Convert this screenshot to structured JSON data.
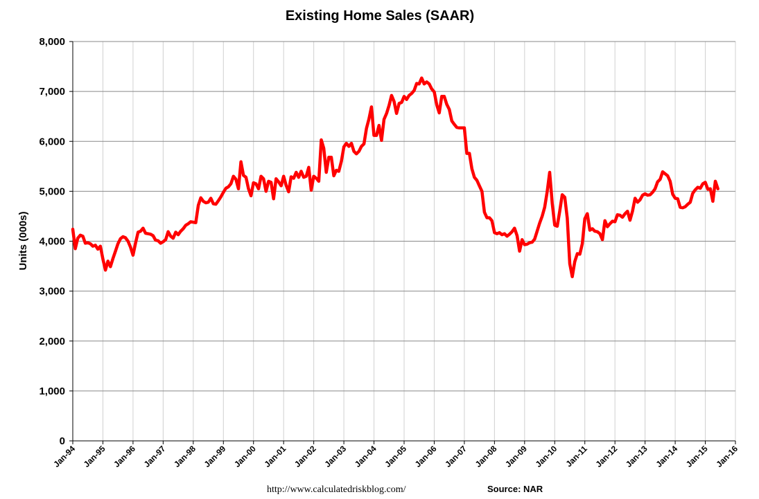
{
  "footer": {
    "url": "http://www.calculatedriskblog.com/",
    "source": "Source: NAR"
  },
  "colors": {
    "series": "#ff0000",
    "grid_h": "#888888",
    "grid_v": "#d0d0d0",
    "axis": "#000000"
  },
  "chart_data": {
    "type": "line",
    "title": "Existing Home Sales (SAAR)",
    "ylabel": "Units (000s)",
    "xlabel": "",
    "ylim": [
      0,
      8000
    ],
    "yticks": [
      0,
      1000,
      2000,
      3000,
      4000,
      5000,
      6000,
      7000,
      8000
    ],
    "ytick_labels": [
      "0",
      "1,000",
      "2,000",
      "3,000",
      "4,000",
      "5,000",
      "6,000",
      "7,000",
      "8,000"
    ],
    "xlim": [
      "1994-01",
      "2016-01"
    ],
    "xtick_labels": [
      "Jan-94",
      "Jan-95",
      "Jan-96",
      "Jan-97",
      "Jan-98",
      "Jan-99",
      "Jan-00",
      "Jan-01",
      "Jan-02",
      "Jan-03",
      "Jan-04",
      "Jan-05",
      "Jan-06",
      "Jan-07",
      "Jan-08",
      "Jan-09",
      "Jan-10",
      "Jan-11",
      "Jan-12",
      "Jan-13",
      "Jan-14",
      "Jan-15",
      "Jan-16"
    ],
    "grid": {
      "horizontal": true,
      "vertical": true
    },
    "legend": "none",
    "series": [
      {
        "color": "#ff0000",
        "x": [
          "1994-01",
          "1994-02",
          "1994-03",
          "1994-04",
          "1994-05",
          "1994-06",
          "1994-07",
          "1994-08",
          "1994-09",
          "1994-10",
          "1994-11",
          "1994-12",
          "1995-01",
          "1995-02",
          "1995-03",
          "1995-04",
          "1995-05",
          "1995-06",
          "1995-07",
          "1995-08",
          "1995-09",
          "1995-10",
          "1995-11",
          "1995-12",
          "1996-01",
          "1996-02",
          "1996-03",
          "1996-04",
          "1996-05",
          "1996-06",
          "1996-07",
          "1996-08",
          "1996-09",
          "1996-10",
          "1996-11",
          "1996-12",
          "1997-01",
          "1997-02",
          "1997-03",
          "1997-04",
          "1997-05",
          "1997-06",
          "1997-07",
          "1997-08",
          "1997-09",
          "1997-10",
          "1997-11",
          "1997-12",
          "1998-01",
          "1998-02",
          "1998-03",
          "1998-04",
          "1998-05",
          "1998-06",
          "1998-07",
          "1998-08",
          "1998-09",
          "1998-10",
          "1998-11",
          "1998-12",
          "1999-01",
          "1999-02",
          "1999-03",
          "1999-04",
          "1999-05",
          "1999-06",
          "1999-07",
          "1999-08",
          "1999-09",
          "1999-10",
          "1999-11",
          "1999-12",
          "2000-01",
          "2000-02",
          "2000-03",
          "2000-04",
          "2000-05",
          "2000-06",
          "2000-07",
          "2000-08",
          "2000-09",
          "2000-10",
          "2000-11",
          "2000-12",
          "2001-01",
          "2001-02",
          "2001-03",
          "2001-04",
          "2001-05",
          "2001-06",
          "2001-07",
          "2001-08",
          "2001-09",
          "2001-10",
          "2001-11",
          "2001-12",
          "2002-01",
          "2002-02",
          "2002-03",
          "2002-04",
          "2002-05",
          "2002-06",
          "2002-07",
          "2002-08",
          "2002-09",
          "2002-10",
          "2002-11",
          "2002-12",
          "2003-01",
          "2003-02",
          "2003-03",
          "2003-04",
          "2003-05",
          "2003-06",
          "2003-07",
          "2003-08",
          "2003-09",
          "2003-10",
          "2003-11",
          "2003-12",
          "2004-01",
          "2004-02",
          "2004-03",
          "2004-04",
          "2004-05",
          "2004-06",
          "2004-07",
          "2004-08",
          "2004-09",
          "2004-10",
          "2004-11",
          "2004-12",
          "2005-01",
          "2005-02",
          "2005-03",
          "2005-04",
          "2005-05",
          "2005-06",
          "2005-07",
          "2005-08",
          "2005-09",
          "2005-10",
          "2005-11",
          "2005-12",
          "2006-01",
          "2006-02",
          "2006-03",
          "2006-04",
          "2006-05",
          "2006-06",
          "2006-07",
          "2006-08",
          "2006-09",
          "2006-10",
          "2006-11",
          "2006-12",
          "2007-01",
          "2007-02",
          "2007-03",
          "2007-04",
          "2007-05",
          "2007-06",
          "2007-07",
          "2007-08",
          "2007-09",
          "2007-10",
          "2007-11",
          "2007-12",
          "2008-01",
          "2008-02",
          "2008-03",
          "2008-04",
          "2008-05",
          "2008-06",
          "2008-07",
          "2008-08",
          "2008-09",
          "2008-10",
          "2008-11",
          "2008-12",
          "2009-01",
          "2009-02",
          "2009-03",
          "2009-04",
          "2009-05",
          "2009-06",
          "2009-07",
          "2009-08",
          "2009-09",
          "2009-10",
          "2009-11",
          "2009-12",
          "2010-01",
          "2010-02",
          "2010-03",
          "2010-04",
          "2010-05",
          "2010-06",
          "2010-07",
          "2010-08",
          "2010-09",
          "2010-10",
          "2010-11",
          "2010-12",
          "2011-01",
          "2011-02",
          "2011-03",
          "2011-04",
          "2011-05",
          "2011-06",
          "2011-07",
          "2011-08",
          "2011-09",
          "2011-10",
          "2011-11",
          "2011-12",
          "2012-01",
          "2012-02",
          "2012-03",
          "2012-04",
          "2012-05",
          "2012-06",
          "2012-07",
          "2012-08",
          "2012-09",
          "2012-10",
          "2012-11",
          "2012-12",
          "2013-01",
          "2013-02",
          "2013-03",
          "2013-04",
          "2013-05",
          "2013-06",
          "2013-07",
          "2013-08",
          "2013-09",
          "2013-10",
          "2013-11",
          "2013-12",
          "2014-01",
          "2014-02",
          "2014-03",
          "2014-04",
          "2014-05",
          "2014-06",
          "2014-07",
          "2014-08",
          "2014-09",
          "2014-10",
          "2014-11",
          "2014-12",
          "2015-01",
          "2015-02",
          "2015-03",
          "2015-04"
        ],
        "values": [
          4240,
          3850,
          4060,
          4120,
          4100,
          3960,
          3970,
          3950,
          3900,
          3920,
          3840,
          3900,
          3640,
          3420,
          3600,
          3490,
          3650,
          3800,
          3950,
          4050,
          4090,
          4070,
          4000,
          3880,
          3720,
          3960,
          4180,
          4200,
          4260,
          4160,
          4150,
          4140,
          4110,
          4020,
          4010,
          3960,
          3990,
          4030,
          4190,
          4100,
          4060,
          4180,
          4130,
          4200,
          4250,
          4320,
          4350,
          4390,
          4380,
          4370,
          4720,
          4870,
          4800,
          4770,
          4780,
          4860,
          4750,
          4740,
          4810,
          4890,
          4980,
          5060,
          5090,
          5150,
          5300,
          5240,
          5050,
          5590,
          5320,
          5280,
          5050,
          4910,
          5170,
          5150,
          5050,
          5300,
          5250,
          5000,
          5200,
          5180,
          4850,
          5250,
          5190,
          5110,
          5300,
          5120,
          4990,
          5290,
          5260,
          5380,
          5280,
          5400,
          5280,
          5300,
          5480,
          5020,
          5300,
          5260,
          5200,
          6030,
          5860,
          5380,
          5680,
          5680,
          5310,
          5420,
          5400,
          5600,
          5890,
          5960,
          5900,
          5960,
          5800,
          5750,
          5800,
          5900,
          5950,
          6260,
          6450,
          6690,
          6120,
          6120,
          6320,
          6020,
          6440,
          6560,
          6720,
          6920,
          6800,
          6560,
          6760,
          6780,
          6900,
          6840,
          6920,
          6960,
          7020,
          7160,
          7150,
          7270,
          7150,
          7190,
          7150,
          7050,
          6990,
          6730,
          6570,
          6900,
          6900,
          6740,
          6640,
          6410,
          6340,
          6280,
          6270,
          6270,
          6270,
          5760,
          5760,
          5450,
          5280,
          5220,
          5110,
          5000,
          4580,
          4470,
          4470,
          4410,
          4170,
          4150,
          4170,
          4130,
          4150,
          4100,
          4140,
          4190,
          4260,
          4110,
          3800,
          4030,
          3930,
          3940,
          3970,
          3980,
          4040,
          4200,
          4360,
          4500,
          4680,
          4990,
          5380,
          4760,
          4320,
          4300,
          4600,
          4930,
          4880,
          4460,
          3550,
          3290,
          3590,
          3750,
          3740,
          3950,
          4450,
          4550,
          4220,
          4250,
          4200,
          4190,
          4150,
          4030,
          4410,
          4290,
          4350,
          4400,
          4390,
          4530,
          4520,
          4480,
          4550,
          4600,
          4420,
          4600,
          4860,
          4780,
          4830,
          4920,
          4950,
          4920,
          4930,
          4980,
          5050,
          5190,
          5240,
          5390,
          5350,
          5310,
          5200,
          4940,
          4860,
          4850,
          4680,
          4670,
          4690,
          4740,
          4780,
          4960,
          5030,
          5080,
          5060,
          5150,
          5180,
          5040,
          5050,
          4800
        ],
        "tail": [
          5200,
          5050
        ]
      }
    ]
  }
}
